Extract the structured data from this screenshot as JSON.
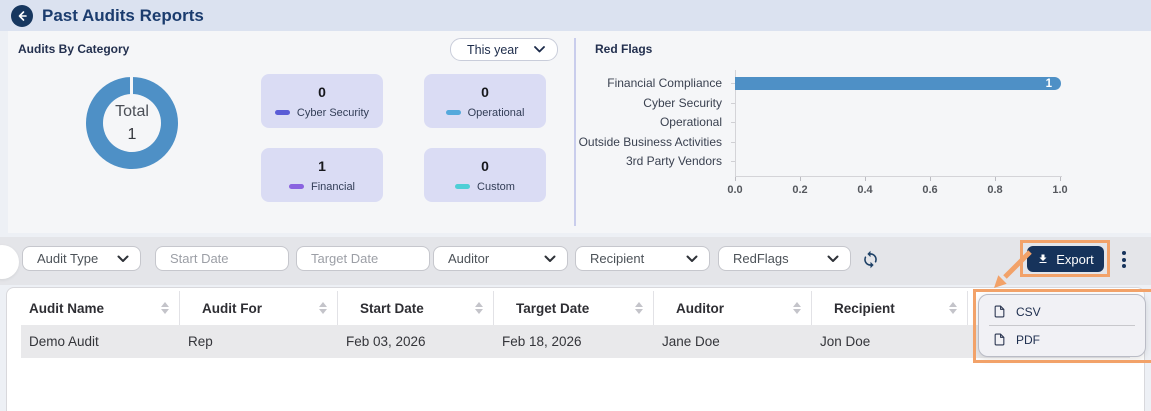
{
  "header": {
    "title": "Past Audits Reports"
  },
  "dashboard": {
    "audits_by_category": {
      "title": "Audits By Category",
      "period_select": {
        "value": "This year"
      },
      "donut_center": {
        "label": "Total",
        "value": "1"
      },
      "categories": [
        {
          "label": "Cyber Security",
          "value": "0",
          "color": "#5a5cd6"
        },
        {
          "label": "Operational",
          "value": "0",
          "color": "#55a9dc"
        },
        {
          "label": "Financial",
          "value": "1",
          "color": "#8a63e0"
        },
        {
          "label": "Custom",
          "value": "0",
          "color": "#4ecfd6"
        }
      ]
    },
    "red_flags": {
      "title": "Red Flags"
    }
  },
  "chart_data": [
    {
      "type": "pie",
      "title": "Audits By Category",
      "labels": [
        "Cyber Security",
        "Operational",
        "Financial",
        "Custom"
      ],
      "values": [
        0,
        0,
        1,
        0
      ],
      "center_label": "Total",
      "center_value": 1,
      "ring_color": "#4e90c6"
    },
    {
      "type": "bar",
      "orientation": "horizontal",
      "title": "Red Flags",
      "categories": [
        "Financial Compliance",
        "Cyber Security",
        "Operational",
        "Outside Business Activities",
        "3rd Party Vendors"
      ],
      "values": [
        1,
        0,
        0,
        0,
        0
      ],
      "xlim": [
        0,
        1
      ],
      "x_ticks": [
        "0.0",
        "0.2",
        "0.4",
        "0.6",
        "0.8",
        "1.0"
      ],
      "bar_color": "#4e90c6",
      "grid": false,
      "legend": false
    }
  ],
  "filters": {
    "audit_type": {
      "value": "Audit Type"
    },
    "start_date": {
      "placeholder": "Start Date"
    },
    "target_date": {
      "placeholder": "Target Date"
    },
    "auditor": {
      "value": "Auditor"
    },
    "recipient": {
      "value": "Recipient"
    },
    "red_flags": {
      "value": "RedFlags"
    }
  },
  "toolbar": {
    "export_label": "Export"
  },
  "table": {
    "columns": [
      "Audit Name",
      "Audit For",
      "Start Date",
      "Target Date",
      "Auditor",
      "Recipient"
    ],
    "rows": [
      [
        "Demo Audit",
        "Rep",
        "Feb 03, 2026",
        "Feb 18, 2026",
        "Jane Doe",
        "Jon Doe"
      ]
    ]
  },
  "export_menu": {
    "items": [
      {
        "label": "CSV"
      },
      {
        "label": "PDF"
      }
    ]
  },
  "colors": {
    "accent_blue": "#4e90c6",
    "navy": "#16335b",
    "annotation_orange": "#f2a269",
    "card_bg": "#dadcf4",
    "topbar_bg": "#dbe2f0"
  }
}
